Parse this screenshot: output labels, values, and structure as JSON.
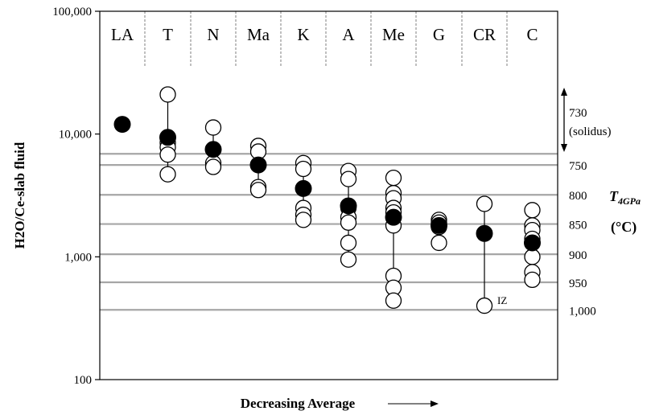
{
  "chart_data": {
    "type": "scatter",
    "y_scale": "log",
    "ylim": [
      100,
      100000
    ],
    "ylabel": "H2O/Ce-slab fluid",
    "xlabel": "Decreasing Average",
    "y_ticks": [
      {
        "value": 100,
        "label": "100"
      },
      {
        "value": 1000,
        "label": "1,000"
      },
      {
        "value": 10000,
        "label": "10,000"
      },
      {
        "value": 100000,
        "label": "100,000"
      }
    ],
    "categories": [
      "LA",
      "T",
      "N",
      "Ma",
      "K",
      "A",
      "Me",
      "G",
      "CR",
      "C"
    ],
    "series": [
      {
        "kind": "samples",
        "marker": "open-circle",
        "values": [
          [],
          [
            21000,
            8500,
            7800,
            6800,
            4700
          ],
          [
            11300,
            5800,
            5400
          ],
          [
            8000,
            7200,
            3700,
            3500
          ],
          [
            5800,
            5200,
            2500,
            2200,
            2000
          ],
          [
            5000,
            4300,
            2500,
            2100,
            1900,
            1300,
            950
          ],
          [
            4400,
            3300,
            3000,
            2500,
            2300,
            1800,
            700,
            560,
            440
          ],
          [
            2000,
            1900,
            1750,
            1300
          ],
          [
            2700,
            400
          ],
          [
            2400,
            1800,
            1650,
            1400,
            1000,
            750,
            650
          ]
        ]
      },
      {
        "kind": "average",
        "marker": "filled-circle",
        "values": [
          12000,
          9400,
          7500,
          5600,
          3600,
          2600,
          2100,
          1800,
          1550,
          1300
        ]
      }
    ],
    "temperature_lines": [
      {
        "value": 6900,
        "label": "730"
      },
      {
        "value": 5600,
        "label": "750"
      },
      {
        "value": 3200,
        "label": "800"
      },
      {
        "value": 1850,
        "label": "850"
      },
      {
        "value": 1050,
        "label": "900"
      },
      {
        "value": 620,
        "label": "950"
      },
      {
        "value": 370,
        "label": "1,000"
      }
    ],
    "solidus_note": "(solidus)",
    "right_axis_label": "T",
    "right_axis_label_sub": "4GPa",
    "right_axis_unit": "(°C)",
    "annotations": [
      {
        "text": "IZ",
        "category": "CR",
        "value": 400
      }
    ],
    "xlabel_arrow": "→"
  }
}
